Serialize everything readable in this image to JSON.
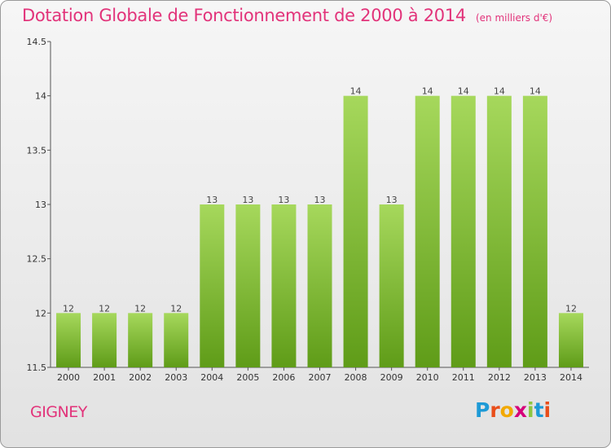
{
  "title": "Dotation Globale de Fonctionnement de 2000 à 2014",
  "subtitle": "(en milliers d'€)",
  "commune": "GIGNEY",
  "logo_text": "Proxiti",
  "colors": {
    "title": "#e2337a",
    "bar_top": "#a4d65a",
    "bar_bottom": "#64a21c"
  },
  "chart_data": {
    "type": "bar",
    "title": "Dotation Globale de Fonctionnement de 2000 à 2014",
    "subtitle": "(en milliers d'€)",
    "categories": [
      "2000",
      "2001",
      "2002",
      "2003",
      "2004",
      "2005",
      "2006",
      "2007",
      "2008",
      "2009",
      "2010",
      "2011",
      "2012",
      "2013",
      "2014"
    ],
    "values": [
      12,
      12,
      12,
      12,
      13,
      13,
      13,
      13,
      14,
      13,
      14,
      14,
      14,
      14,
      12
    ],
    "data_labels": [
      "12",
      "12",
      "12",
      "12",
      "13",
      "13",
      "13",
      "13",
      "14",
      "13",
      "14",
      "14",
      "14",
      "14",
      "12"
    ],
    "ylim": [
      11.5,
      14.5
    ],
    "yticks": [
      "11.5",
      "12",
      "12.5",
      "13",
      "13.5",
      "14",
      "14.5"
    ],
    "xlabel": "",
    "ylabel": "",
    "grid": false,
    "legend": "none"
  }
}
